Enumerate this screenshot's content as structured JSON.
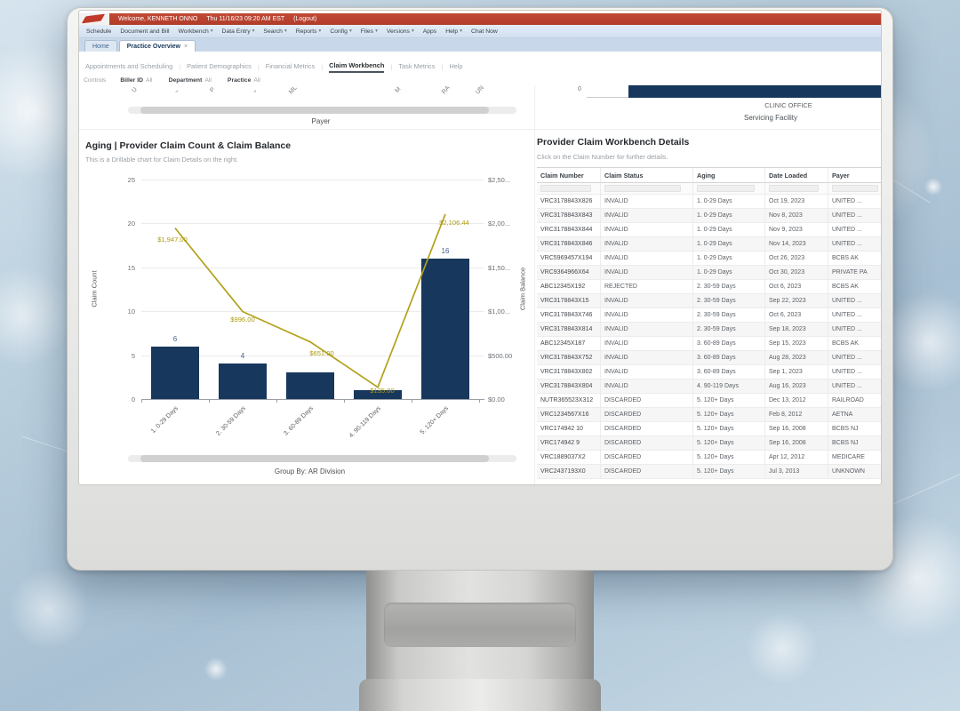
{
  "top_bar": {
    "welcome_text": "Welcome, KENNETH ONNO",
    "datetime_text": "Thu 11/16/23 09:20 AM EST",
    "logout_label": "(Logout)"
  },
  "menu": {
    "items": [
      {
        "label": "Schedule",
        "caret": false
      },
      {
        "label": "Document and Bill",
        "caret": false
      },
      {
        "label": "Workbench",
        "caret": true
      },
      {
        "label": "Data Entry",
        "caret": true
      },
      {
        "label": "Search",
        "caret": true
      },
      {
        "label": "Reports",
        "caret": true
      },
      {
        "label": "Config",
        "caret": true
      },
      {
        "label": "Files",
        "caret": true
      },
      {
        "label": "Versions",
        "caret": true
      },
      {
        "label": "Apps",
        "caret": false
      },
      {
        "label": "Help",
        "caret": true
      },
      {
        "label": "Chat Now",
        "caret": false
      }
    ]
  },
  "tabs": [
    {
      "label": "Home",
      "active": false,
      "closable": false
    },
    {
      "label": "Practice Overview",
      "active": true,
      "closable": true
    }
  ],
  "subtabs": {
    "items": [
      "Appointments and Scheduling",
      "Patient Demographics",
      "Financial Metrics",
      "Claim Workbench",
      "Task Metrics",
      "Help"
    ],
    "active_index": 3
  },
  "controls": {
    "label": "Controls",
    "filters": [
      {
        "name": "Biller ID",
        "value": "All"
      },
      {
        "name": "Department",
        "value": "All"
      },
      {
        "name": "Practice",
        "value": "All"
      }
    ]
  },
  "chart_data": [
    {
      "type": "bar",
      "role": "clipped-top-left-chart",
      "xlabel": "Payer",
      "truncated_labels": [
        {
          "text": "U",
          "x": 53
        },
        {
          "text": "⌄",
          "x": 99
        },
        {
          "text": "P",
          "x": 141
        },
        {
          "text": "⌄",
          "x": 187
        },
        {
          "text": "ML",
          "x": 229
        },
        {
          "text": "M",
          "x": 349
        },
        {
          "text": "RA",
          "x": 401
        },
        {
          "text": "UN",
          "x": 439
        }
      ]
    },
    {
      "type": "bar",
      "role": "clipped-top-right-chart",
      "orientation": "horizontal",
      "xlabel": "Servicing Facility",
      "categories": [
        "CLINIC OFFICE"
      ],
      "visible_tick": "0",
      "bar_color": "#17375c"
    },
    {
      "type": "bar",
      "title": "Aging | Provider Claim Count & Claim Balance",
      "subtitle": "This is a Drillable chart for Claim Details on the right.",
      "categories": [
        "1. 0-29 Days",
        "2. 30-59 Days",
        "3. 60-89 Days",
        "4. 90-119 Days",
        "5. 120+ Days"
      ],
      "series": [
        {
          "name": "Claim Count",
          "type": "bar",
          "axis": "left",
          "color": "#17375c",
          "values": [
            6,
            4,
            3,
            1,
            16
          ],
          "labels": [
            "6",
            "4",
            "",
            "",
            "16"
          ]
        },
        {
          "name": "Claim Balance",
          "type": "line",
          "axis": "right",
          "color": "#b3a11c",
          "values": [
            1947.0,
            996.0,
            651.0,
            135.0,
            2106.44
          ],
          "labels": [
            "$1,947.00",
            "$996.00",
            "$651.00",
            "$135.00",
            "$2,106.44"
          ]
        }
      ],
      "left_axis": {
        "label": "Claim Count",
        "max": 25,
        "ticks": [
          "25",
          "20",
          "15",
          "10",
          "5",
          "0"
        ]
      },
      "right_axis": {
        "label": "Claim Balance",
        "max": 2500,
        "ticks": [
          "$2,50...",
          "$2,00...",
          "$1,50...",
          "$1,00...",
          "$500.00",
          "$0.00"
        ]
      },
      "grid": true,
      "legend": "none",
      "footer": "Group By: AR Division"
    }
  ],
  "workbench": {
    "title": "Provider Claim Workbench Details",
    "subtitle": "Click on the Claim Number for further details.",
    "columns": [
      "Claim Number",
      "Claim Status",
      "Aging",
      "Date Loaded",
      "Payer"
    ],
    "rows": [
      [
        "VRC3178843X826",
        "INVALID",
        "1. 0-29 Days",
        "Oct 19, 2023",
        "UNITED ..."
      ],
      [
        "VRC3178843X843",
        "INVALID",
        "1. 0-29 Days",
        "Nov 8, 2023",
        "UNITED ..."
      ],
      [
        "VRC3178843X844",
        "INVALID",
        "1. 0-29 Days",
        "Nov 9, 2023",
        "UNITED ..."
      ],
      [
        "VRC3178843X846",
        "INVALID",
        "1. 0-29 Days",
        "Nov 14, 2023",
        "UNITED ..."
      ],
      [
        "VRC5969457X194",
        "INVALID",
        "1. 0-29 Days",
        "Oct 26, 2023",
        "BCBS AK"
      ],
      [
        "VRC9364966X64",
        "INVALID",
        "1. 0-29 Days",
        "Oct 30, 2023",
        "PRIVATE PA"
      ],
      [
        "ABC12345X192",
        "REJECTED",
        "2. 30-59 Days",
        "Oct 6, 2023",
        "BCBS AK"
      ],
      [
        "VRC3178843X15",
        "INVALID",
        "2. 30-59 Days",
        "Sep 22, 2023",
        "UNITED ..."
      ],
      [
        "VRC3178843X746",
        "INVALID",
        "2. 30-59 Days",
        "Oct 6, 2023",
        "UNITED ..."
      ],
      [
        "VRC3178843X814",
        "INVALID",
        "2. 30-59 Days",
        "Sep 18, 2023",
        "UNITED ..."
      ],
      [
        "ABC12345X187",
        "INVALID",
        "3. 60-89 Days",
        "Sep 15, 2023",
        "BCBS AK"
      ],
      [
        "VRC3178843X752",
        "INVALID",
        "3. 60-89 Days",
        "Aug 28, 2023",
        "UNITED ..."
      ],
      [
        "VRC3178843X802",
        "INVALID",
        "3. 60-89 Days",
        "Sep 1, 2023",
        "UNITED ..."
      ],
      [
        "VRC3178843X804",
        "INVALID",
        "4. 90-119 Days",
        "Aug 16, 2023",
        "UNITED ..."
      ],
      [
        "NUTR365523X312",
        "DISCARDED",
        "5. 120+ Days",
        "Dec 13, 2012",
        "RAILROAD"
      ],
      [
        "VRC1234567X16",
        "DISCARDED",
        "5. 120+ Days",
        "Feb 8, 2012",
        "AETNA"
      ],
      [
        "VRC174942 10",
        "DISCARDED",
        "5. 120+ Days",
        "Sep 16, 2008",
        "BCBS NJ"
      ],
      [
        "VRC174942 9",
        "DISCARDED",
        "5. 120+ Days",
        "Sep 16, 2008",
        "BCBS NJ"
      ],
      [
        "VRC1889037X2",
        "DISCARDED",
        "5. 120+ Days",
        "Apr 12, 2012",
        "MEDICARE"
      ],
      [
        "VRC2437193X0",
        "DISCARDED",
        "5. 120+ Days",
        "Jul 3, 2013",
        "UNKNOWN"
      ]
    ]
  }
}
